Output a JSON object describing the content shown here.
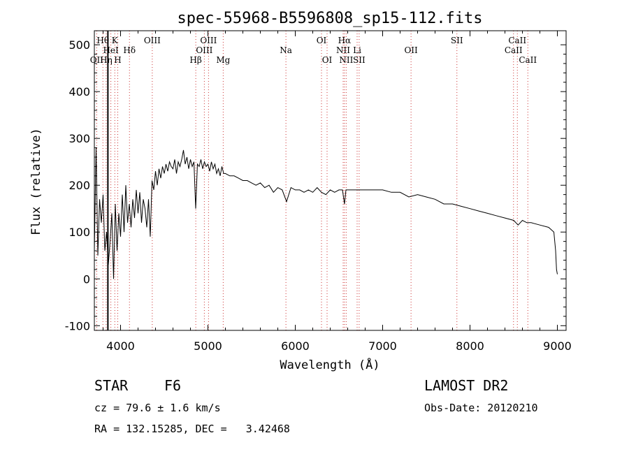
{
  "chart_data": {
    "type": "line",
    "title": "spec-55968-B5596808_sp15-112.fits",
    "xlabel": "Wavelength (Å)",
    "ylabel": "Flux (relative)",
    "xlim": [
      3700,
      9100
    ],
    "ylim": [
      -110,
      530
    ],
    "xticks": [
      4000,
      5000,
      6000,
      7000,
      8000,
      9000
    ],
    "yticks": [
      -100,
      0,
      100,
      200,
      300,
      400,
      500
    ],
    "grid": false,
    "series": [
      {
        "x": [
          3700,
          3720,
          3740,
          3760,
          3780,
          3800,
          3820,
          3840,
          3860,
          3880,
          3900,
          3920,
          3940,
          3960,
          3980,
          4000,
          4020,
          4040,
          4060,
          4080,
          4100,
          4120,
          4140,
          4160,
          4180,
          4200,
          4220,
          4240,
          4260,
          4280,
          4300,
          4320,
          4340,
          4360,
          4380,
          4400,
          4420,
          4440,
          4460,
          4480,
          4500,
          4520,
          4540,
          4560,
          4580,
          4600,
          4620,
          4640,
          4660,
          4680,
          4700,
          4720,
          4740,
          4760,
          4780,
          4800,
          4820,
          4840,
          4860,
          4880,
          4900,
          4920,
          4940,
          4960,
          4980,
          5000,
          5020,
          5040,
          5060,
          5080,
          5100,
          5120,
          5140,
          5160,
          5180,
          5200,
          5250,
          5300,
          5350,
          5400,
          5450,
          5500,
          5550,
          5600,
          5650,
          5700,
          5750,
          5800,
          5850,
          5900,
          5950,
          6000,
          6050,
          6100,
          6150,
          6200,
          6250,
          6300,
          6350,
          6400,
          6450,
          6500,
          6540,
          6563,
          6580,
          6620,
          6700,
          6800,
          6900,
          7000,
          7100,
          7200,
          7300,
          7400,
          7500,
          7600,
          7700,
          7800,
          7900,
          8000,
          8100,
          8200,
          8300,
          8400,
          8500,
          8550,
          8600,
          8650,
          8700,
          8800,
          8900,
          8960,
          8980,
          8990,
          9000
        ],
        "y": [
          60,
          280,
          50,
          170,
          120,
          180,
          60,
          100,
          30,
          80,
          140,
          0,
          160,
          60,
          140,
          90,
          180,
          100,
          200,
          120,
          160,
          110,
          170,
          130,
          190,
          140,
          185,
          120,
          170,
          150,
          110,
          170,
          90,
          210,
          190,
          230,
          200,
          235,
          215,
          240,
          225,
          245,
          230,
          250,
          240,
          235,
          255,
          225,
          250,
          240,
          255,
          275,
          245,
          260,
          235,
          255,
          240,
          250,
          150,
          245,
          240,
          255,
          235,
          250,
          240,
          245,
          230,
          250,
          235,
          245,
          225,
          235,
          220,
          240,
          225,
          225,
          220,
          220,
          215,
          210,
          210,
          205,
          200,
          205,
          195,
          200,
          185,
          195,
          190,
          165,
          195,
          190,
          190,
          185,
          190,
          185,
          195,
          185,
          180,
          190,
          185,
          190,
          190,
          160,
          190,
          190,
          190,
          190,
          190,
          190,
          185,
          185,
          175,
          180,
          175,
          170,
          160,
          160,
          155,
          150,
          145,
          140,
          135,
          130,
          125,
          115,
          125,
          120,
          120,
          115,
          110,
          100,
          60,
          20,
          10
        ]
      }
    ]
  },
  "line_labels": [
    {
      "text": "Hθ",
      "wave": 3798,
      "row": 0
    },
    {
      "text": "K",
      "wave": 3934,
      "row": 0
    },
    {
      "text": "OIII",
      "wave": 4363,
      "row": 0
    },
    {
      "text": "OIII",
      "wave": 5007,
      "row": 0
    },
    {
      "text": "OI",
      "wave": 6300,
      "row": 0
    },
    {
      "text": "Hα",
      "wave": 6563,
      "row": 0
    },
    {
      "text": "SII",
      "wave": 7850,
      "row": 0
    },
    {
      "text": "CaII",
      "wave": 8542,
      "row": 0
    },
    {
      "text": "HeI",
      "wave": 3889,
      "row": 1
    },
    {
      "text": "Hδ",
      "wave": 4102,
      "row": 1
    },
    {
      "text": "OIII",
      "wave": 4959,
      "row": 1
    },
    {
      "text": "Na",
      "wave": 5893,
      "row": 1
    },
    {
      "text": "NII",
      "wave": 6548,
      "row": 1
    },
    {
      "text": "Li",
      "wave": 6708,
      "row": 1
    },
    {
      "text": "OII",
      "wave": 7325,
      "row": 1
    },
    {
      "text": "CaII",
      "wave": 8498,
      "row": 1
    },
    {
      "text": "OII",
      "wave": 3727,
      "row": 2
    },
    {
      "text": "Hη",
      "wave": 3835,
      "row": 2
    },
    {
      "text": "H",
      "wave": 3968,
      "row": 2
    },
    {
      "text": "Hβ",
      "wave": 4861,
      "row": 2
    },
    {
      "text": "Mg",
      "wave": 5175,
      "row": 2
    },
    {
      "text": "OI",
      "wave": 6364,
      "row": 2
    },
    {
      "text": "NII",
      "wave": 6583,
      "row": 2
    },
    {
      "text": "SII",
      "wave": 6731,
      "row": 2
    },
    {
      "text": "CaII",
      "wave": 8662,
      "row": 2
    }
  ],
  "line_marks": [
    3727,
    3798,
    3835,
    3889,
    3934,
    3968,
    4102,
    4363,
    4861,
    4959,
    5007,
    5175,
    5893,
    6300,
    6364,
    6548,
    6563,
    6583,
    6708,
    6731,
    7325,
    7850,
    8498,
    8542,
    8662
  ],
  "solid_marker_wave": 3855,
  "info": {
    "class": "STAR",
    "subclass": "F6",
    "survey": "LAMOST DR2",
    "cz": "cz = 79.6 ± 1.6 km/s",
    "obsdate": "Obs-Date: 20120210",
    "coords": "RA = 132.15285, DEC =   3.42468"
  },
  "colors": {
    "line": "#000000",
    "mark": "#cc3333",
    "background": "#ffffff"
  }
}
